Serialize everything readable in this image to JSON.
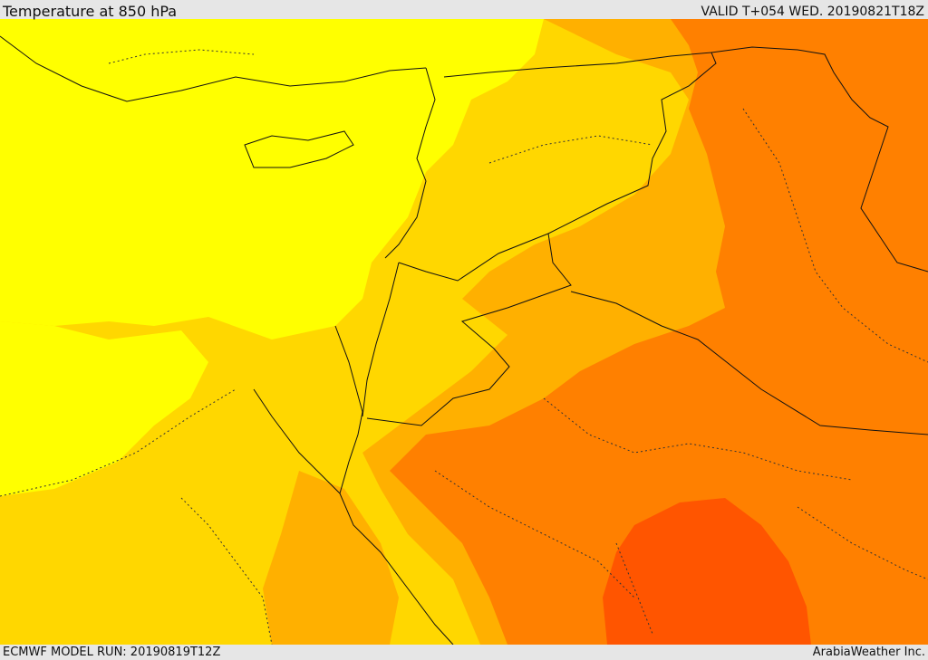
{
  "header": {
    "title": "Temperature at 850 hPa",
    "valid": "VALID T+054 WED. 20190821T18Z"
  },
  "footer": {
    "model_run": "ECMWF MODEL RUN: 20190819T12Z",
    "credit": "ArabiaWeather Inc."
  },
  "colors": {
    "band_1_coolest": "#ffff00",
    "band_2": "#ffd700",
    "band_3": "#ffb000",
    "band_4": "#ff8000",
    "band_5_hottest": "#ff5500",
    "borders": "#111111",
    "bars": "#e6e6e6"
  }
}
